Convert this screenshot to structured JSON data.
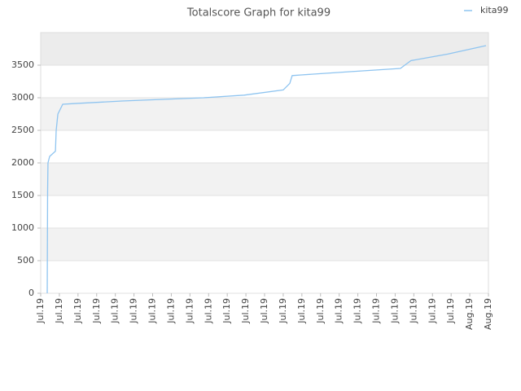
{
  "chart_data": {
    "type": "line",
    "title": "Totalscore Graph for kita99",
    "series": [
      {
        "name": "kita99",
        "color": "#8ec4f0",
        "x": [
          0.35,
          0.37,
          0.39,
          0.48,
          0.79,
          0.83,
          0.92,
          1.18,
          1.75,
          4.36,
          8.73,
          10.9,
          13.0,
          13.35,
          13.48,
          13.96,
          16.58,
          19.28,
          19.85,
          21.82,
          23.87
        ],
        "values": [
          0,
          1550,
          2000,
          2100,
          2180,
          2500,
          2750,
          2900,
          2910,
          2950,
          3000,
          3040,
          3120,
          3220,
          3340,
          3350,
          3400,
          3450,
          3570,
          3670,
          3800
        ]
      }
    ],
    "xlim": [
      0,
      24
    ],
    "xticks": [
      {
        "value": 0,
        "label": "Jul.19"
      },
      {
        "value": 1,
        "label": "Jul.19"
      },
      {
        "value": 2,
        "label": "Jul.19"
      },
      {
        "value": 3,
        "label": "Jul.19"
      },
      {
        "value": 4,
        "label": "Jul.19"
      },
      {
        "value": 5,
        "label": "Jul.19"
      },
      {
        "value": 6,
        "label": "Jul.19"
      },
      {
        "value": 7,
        "label": "Jul.19"
      },
      {
        "value": 8,
        "label": "Jul.19"
      },
      {
        "value": 9,
        "label": "Jul.19"
      },
      {
        "value": 10,
        "label": "Jul.19"
      },
      {
        "value": 11,
        "label": "Jul.19"
      },
      {
        "value": 12,
        "label": "Jul.19"
      },
      {
        "value": 13,
        "label": "Jul.19"
      },
      {
        "value": 14,
        "label": "Jul.19"
      },
      {
        "value": 15,
        "label": "Jul.19"
      },
      {
        "value": 16,
        "label": "Jul.19"
      },
      {
        "value": 17,
        "label": "Jul.19"
      },
      {
        "value": 18,
        "label": "Jul.19"
      },
      {
        "value": 19,
        "label": "Jul.19"
      },
      {
        "value": 20,
        "label": "Jul.19"
      },
      {
        "value": 21,
        "label": "Jul.19"
      },
      {
        "value": 22,
        "label": "Jul.19"
      },
      {
        "value": 23,
        "label": "Aug.19"
      },
      {
        "value": 24,
        "label": "Aug.19"
      }
    ],
    "ylim": [
      0,
      4000
    ],
    "yticks": [
      0,
      500,
      1000,
      1500,
      2000,
      2500,
      3000,
      3500
    ],
    "grid": true,
    "legend": "top-right"
  }
}
